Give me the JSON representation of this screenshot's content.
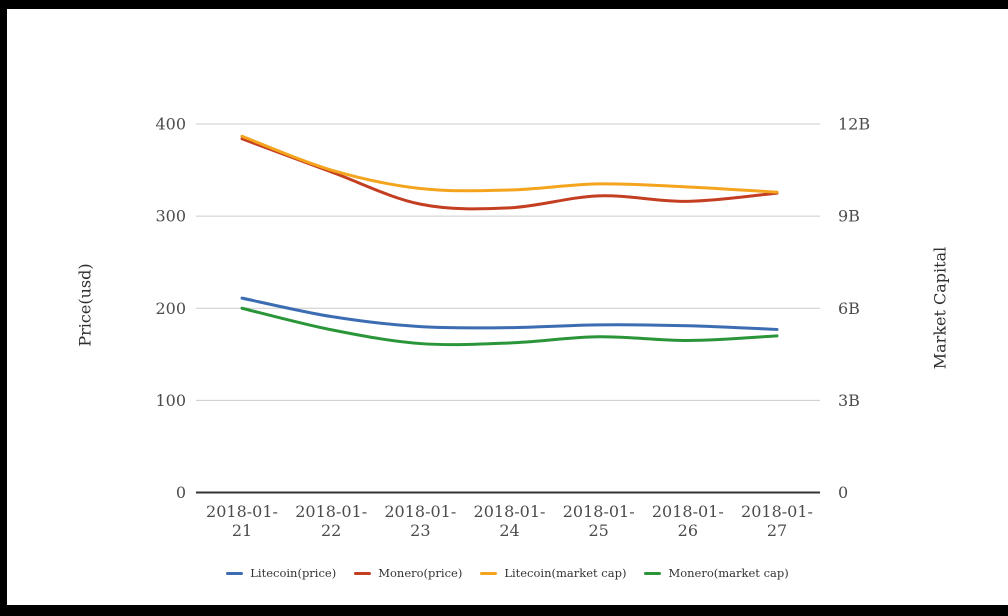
{
  "chart_data": {
    "type": "line",
    "x_categories": [
      "2018-01-21",
      "2018-01-22",
      "2018-01-23",
      "2018-01-24",
      "2018-01-25",
      "2018-01-26",
      "2018-01-27"
    ],
    "left_axis": {
      "title": "Price(usd)",
      "range": [
        0,
        400
      ],
      "ticks": [
        0,
        100,
        200,
        300,
        400
      ],
      "tick_labels": [
        "0",
        "100",
        "200",
        "300",
        "400"
      ]
    },
    "right_axis": {
      "title": "Market Capital",
      "range_billions": [
        0,
        12
      ],
      "ticks": [
        0,
        3,
        6,
        9,
        12
      ],
      "tick_labels": [
        "0",
        "3B",
        "6B",
        "9B",
        "12B"
      ]
    },
    "grid": true,
    "legend_position": "bottom",
    "series": [
      {
        "name": "Litecoin(price)",
        "axis": "left",
        "color": "#3C6DB3",
        "values": [
          211,
          191,
          180,
          179,
          182,
          181,
          177
        ]
      },
      {
        "name": "Monero(price)",
        "axis": "left",
        "color": "#C43E22",
        "values": [
          384,
          348,
          313,
          309,
          322,
          316,
          325
        ]
      },
      {
        "name": "Litecoin(market cap)",
        "axis": "right",
        "color": "#F4A41D",
        "values": [
          11.6,
          10.5,
          9.9,
          9.85,
          10.05,
          9.95,
          9.78
        ]
      },
      {
        "name": "Monero(market cap)",
        "axis": "right",
        "color": "#2B9639",
        "values": [
          6.0,
          5.3,
          4.85,
          4.87,
          5.07,
          4.95,
          5.1
        ]
      }
    ]
  }
}
